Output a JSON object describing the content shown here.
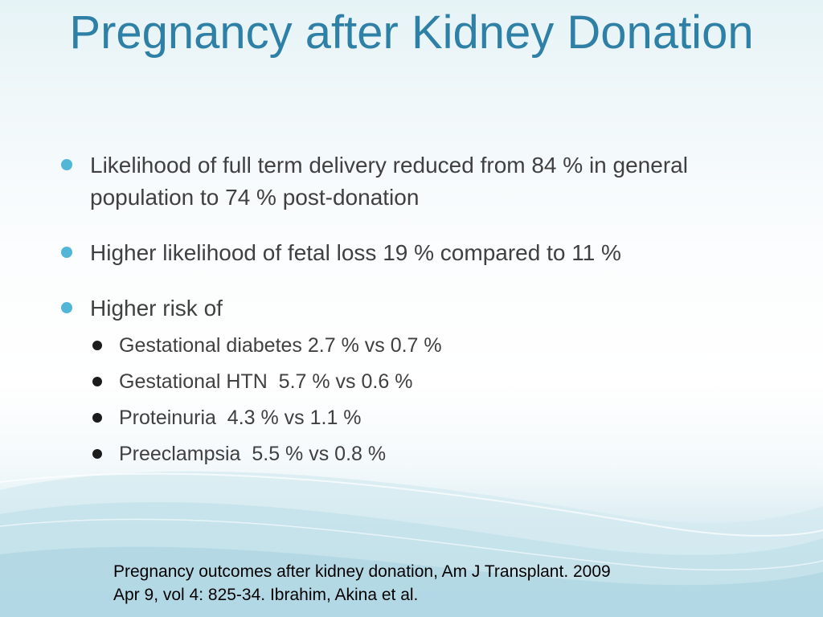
{
  "slide": {
    "title": "Pregnancy after Kidney Donation",
    "bullets": [
      {
        "text": "Likelihood of full term delivery reduced from 84 % in general population to 74 % post-donation"
      },
      {
        "text": "Higher likelihood of fetal loss 19 % compared to 11 %"
      },
      {
        "text": "Higher risk of",
        "sub_items": [
          "Gestational diabetes 2.7 % vs 0.7 %",
          "Gestational HTN  5.7 % vs 0.6 %",
          "Proteinuria  4.3 % vs 1.1 %",
          "Preeclampsia  5.5 % vs 0.8 %"
        ]
      }
    ],
    "citation": {
      "line1": "Pregnancy outcomes after kidney donation, Am J Transplant. 2009",
      "line2": "Apr 9, vol 4: 825-34. Ibrahim, Akina et al."
    }
  },
  "colors": {
    "title": "#2f80a6",
    "bullet_l1": "#52b6d6",
    "bullet_l2": "#1c1c1c",
    "body_text": "#404040",
    "wave": "#7fbfd3"
  }
}
